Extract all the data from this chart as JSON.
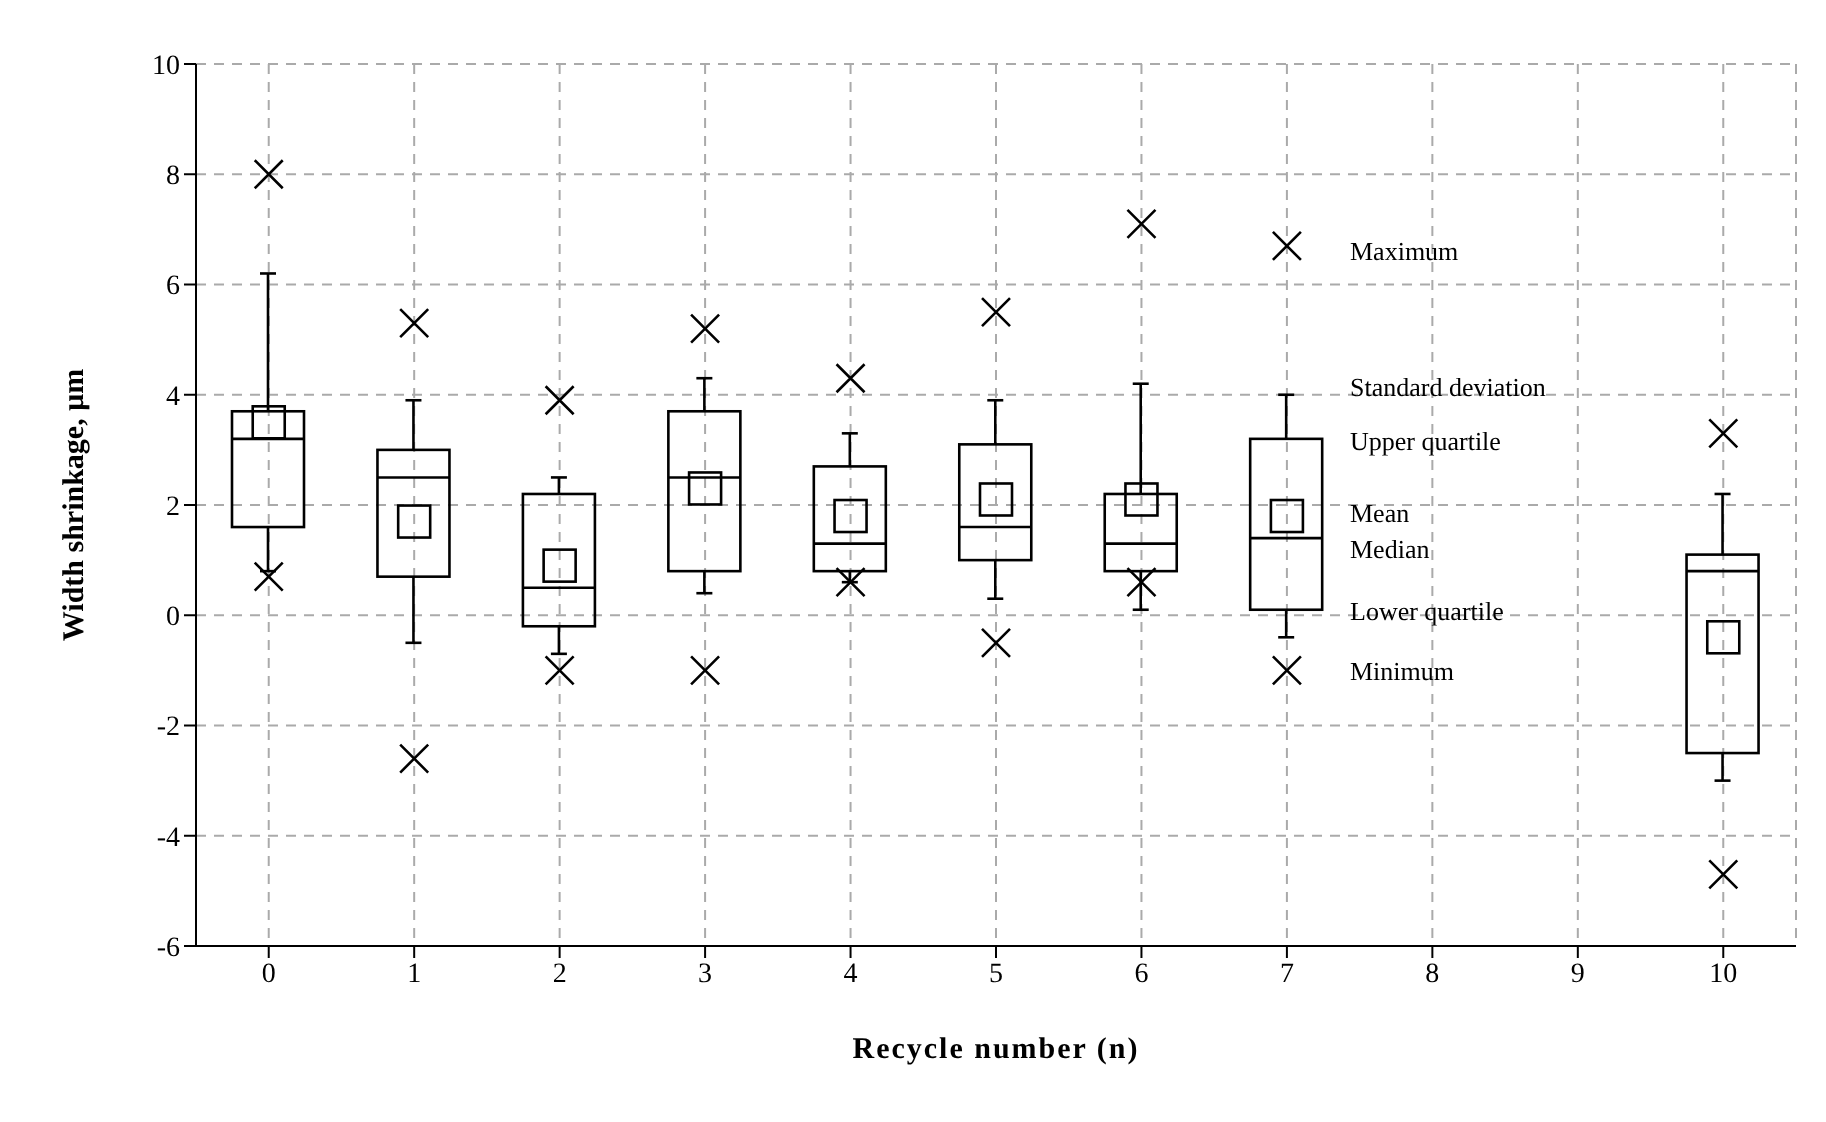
{
  "chart_data": {
    "type": "box",
    "xlabel": "Recycle number (n)",
    "ylabel": "Width shrinkage, μm",
    "categories": [
      "0",
      "1",
      "2",
      "3",
      "4",
      "5",
      "6",
      "7",
      "8",
      "9",
      "10"
    ],
    "boxes": [
      {
        "low": 0.8,
        "q1": 1.6,
        "median": 3.2,
        "q3": 3.7,
        "high": 6.2,
        "mean": 3.5,
        "outliers": [
          8.0,
          0.7
        ]
      },
      {
        "low": -0.5,
        "q1": 0.7,
        "median": 2.5,
        "q3": 3.0,
        "high": 3.9,
        "mean": 1.7,
        "outliers": [
          5.3,
          -2.6
        ]
      },
      {
        "low": -0.7,
        "q1": -0.2,
        "median": 0.5,
        "q3": 2.2,
        "high": 2.5,
        "mean": 0.9,
        "outliers": [
          3.9,
          -1.0
        ]
      },
      {
        "low": 0.4,
        "q1": 0.8,
        "median": 2.5,
        "q3": 3.7,
        "high": 4.3,
        "mean": 2.3,
        "outliers": [
          5.2,
          -1.0
        ]
      },
      {
        "low": 0.6,
        "q1": 0.8,
        "median": 1.3,
        "q3": 2.7,
        "high": 3.3,
        "mean": 1.8,
        "outliers": [
          4.3,
          0.6
        ]
      },
      {
        "low": 0.3,
        "q1": 1.0,
        "median": 1.6,
        "q3": 3.1,
        "high": 3.9,
        "mean": 2.1,
        "outliers": [
          5.5,
          -0.5
        ]
      },
      {
        "low": 0.1,
        "q1": 0.8,
        "median": 1.3,
        "q3": 2.2,
        "high": 4.2,
        "mean": 2.1,
        "outliers": [
          7.1,
          0.6
        ]
      },
      {
        "low": -0.4,
        "q1": 0.1,
        "median": 1.4,
        "q3": 3.2,
        "high": 4.0,
        "mean": 1.8,
        "outliers": [
          6.7,
          -1.0
        ]
      },
      null,
      null,
      {
        "low": -3.0,
        "q1": -2.5,
        "median": 0.8,
        "q3": 1.1,
        "high": 2.2,
        "mean": -0.4,
        "outliers": [
          3.3,
          -4.7
        ]
      }
    ],
    "ylim": [
      -6,
      10
    ],
    "yticks": [
      -6,
      -4,
      -2,
      0,
      2,
      4,
      6,
      8,
      10
    ],
    "grid": true,
    "marker": "square",
    "annotations": [
      "Maximum",
      "Standard deviation",
      "Upper quartile",
      "Mean",
      "Median",
      "Lower quartile",
      "Minimum"
    ]
  }
}
